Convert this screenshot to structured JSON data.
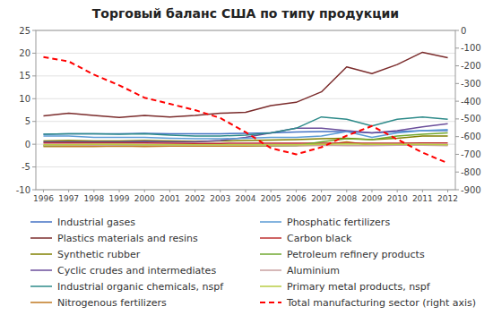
{
  "chart_data": {
    "type": "line",
    "title": "Торговый баланс США по типу продукции",
    "x": [
      1996,
      1997,
      1998,
      1999,
      2000,
      2001,
      2002,
      2003,
      2004,
      2005,
      2006,
      2007,
      2008,
      2009,
      2010,
      2011,
      2012
    ],
    "xlim": [
      1995.7,
      2012.3
    ],
    "xticks": [
      1996,
      1997,
      1998,
      1999,
      2000,
      2001,
      2002,
      2003,
      2004,
      2005,
      2006,
      2007,
      2008,
      2009,
      2010,
      2011,
      2012
    ],
    "ylim": [
      -10,
      25
    ],
    "yticks": [
      -10,
      -5,
      0,
      5,
      10,
      15,
      20,
      25
    ],
    "y2lim": [
      -900,
      0
    ],
    "y2ticks": [
      -900,
      -800,
      -700,
      -600,
      -500,
      -400,
      -300,
      -200,
      -100,
      0
    ],
    "grid": true,
    "legend": "bottom",
    "series": [
      {
        "name": "Industrial gases",
        "color": "#4472C4",
        "line_style": "solid",
        "values": [
          2.2,
          2.3,
          2.3,
          2.3,
          2.4,
          2.3,
          2.3,
          2.3,
          2.4,
          2.5,
          2.7,
          2.8,
          2.8,
          2.5,
          2.8,
          3.0,
          3.0
        ]
      },
      {
        "name": "Plastics materials and resins",
        "color": "#7B2C2C",
        "line_style": "solid",
        "values": [
          6.2,
          6.8,
          6.3,
          5.9,
          6.3,
          6.0,
          6.3,
          6.8,
          7.0,
          8.5,
          9.2,
          11.5,
          17.0,
          15.5,
          17.5,
          20.2,
          19.0
        ]
      },
      {
        "name": "Synthetic rubber",
        "color": "#808000",
        "line_style": "solid",
        "values": [
          0.7,
          0.8,
          0.7,
          0.7,
          0.8,
          0.7,
          0.6,
          0.7,
          0.8,
          0.9,
          1.0,
          1.2,
          1.3,
          1.0,
          1.3,
          1.8,
          1.8
        ]
      },
      {
        "name": "Cyclic crudes and intermediates",
        "color": "#6B4E9B",
        "line_style": "solid",
        "values": [
          0.5,
          0.5,
          0.5,
          0.5,
          0.6,
          0.5,
          0.5,
          0.8,
          1.5,
          2.5,
          3.5,
          3.5,
          3.0,
          2.5,
          3.0,
          3.8,
          4.5
        ]
      },
      {
        "name": "Industrial organic chemicals, nspf",
        "color": "#2E8B8A",
        "line_style": "solid",
        "values": [
          2.2,
          2.3,
          2.3,
          2.2,
          2.3,
          2.0,
          1.8,
          1.8,
          2.0,
          2.5,
          3.5,
          6.0,
          5.5,
          4.0,
          5.5,
          6.0,
          5.5
        ]
      },
      {
        "name": "Nitrogenous fertilizers",
        "color": "#C07820",
        "line_style": "solid",
        "values": [
          -0.5,
          -0.5,
          -0.5,
          -0.4,
          -0.5,
          -0.4,
          -0.4,
          -0.4,
          -0.4,
          -0.4,
          -0.3,
          -0.2,
          0.5,
          -0.2,
          -0.1,
          -0.1,
          -0.1
        ]
      },
      {
        "name": "Phosphatic fertilizers",
        "color": "#5B9BD5",
        "line_style": "solid",
        "values": [
          1.8,
          1.8,
          1.5,
          1.5,
          1.5,
          1.3,
          1.2,
          1.2,
          1.3,
          1.5,
          1.5,
          1.8,
          2.8,
          1.5,
          2.5,
          3.0,
          3.2
        ]
      },
      {
        "name": "Carbon black",
        "color": "#BE3030",
        "line_style": "solid",
        "values": [
          0.25,
          0.25,
          0.25,
          0.25,
          0.25,
          0.22,
          0.2,
          0.2,
          0.22,
          0.22,
          0.22,
          0.22,
          0.22,
          0.22,
          0.22,
          0.25,
          0.25
        ]
      },
      {
        "name": "Petroleum refinery products",
        "color": "#70A830",
        "line_style": "solid",
        "values": [
          -0.3,
          -0.2,
          -0.1,
          -0.1,
          -0.2,
          -0.1,
          -0.1,
          -0.1,
          -0.2,
          -0.3,
          -0.3,
          0.5,
          1.2,
          1.0,
          1.8,
          2.2,
          2.5
        ]
      },
      {
        "name": "Aluminium",
        "color": "#C8A0A0",
        "line_style": "solid",
        "values": [
          -0.2,
          -0.2,
          -0.2,
          -0.1,
          -0.2,
          -0.2,
          -0.2,
          -0.2,
          -0.2,
          -0.3,
          -0.3,
          -0.2,
          -0.3,
          -0.3,
          -0.2,
          -0.2,
          -0.3
        ]
      },
      {
        "name": "Primary metal products, nspf",
        "color": "#B8CC44",
        "line_style": "solid",
        "values": [
          -0.1,
          -0.1,
          0.0,
          0.0,
          -0.1,
          -0.1,
          -0.1,
          -0.1,
          -0.1,
          -0.1,
          -0.1,
          0.0,
          0.1,
          0.0,
          0.0,
          0.0,
          -0.1
        ]
      },
      {
        "name": "Total manufacturing sector (right axis)",
        "color": "#FF0000",
        "line_style": "dashed",
        "axis": "y2",
        "values": [
          -150,
          -175,
          -250,
          -310,
          -380,
          -415,
          -450,
          -495,
          -575,
          -665,
          -700,
          -660,
          -595,
          -540,
          -615,
          -690,
          -750
        ]
      }
    ]
  }
}
